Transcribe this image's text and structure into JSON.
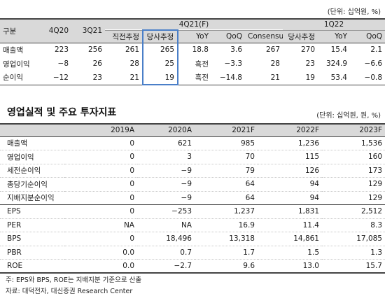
{
  "table1": {
    "unit": "(단위: 십억원, %)",
    "header1": [
      "구분",
      "4Q20",
      "3Q21",
      "4Q21(F)",
      "1Q22"
    ],
    "header2": [
      "직전추정",
      "당사추정",
      "YoY",
      "QoQ",
      "Consensus",
      "당사추정",
      "YoY",
      "QoQ"
    ],
    "rows": [
      [
        "매출액",
        "223",
        "256",
        "261",
        "265",
        "18.8",
        "3.6",
        "267",
        "270",
        "15.4",
        "2.1"
      ],
      [
        "영업이익",
        "−8",
        "26",
        "28",
        "25",
        "흑전",
        "−3.3",
        "28",
        "23",
        "324.9",
        "−6.6"
      ],
      [
        "순이익",
        "−12",
        "23",
        "21",
        "19",
        "흑전",
        "−14.8",
        "21",
        "19",
        "53.4",
        "−0.8"
      ]
    ]
  },
  "section_title": "영업실적 및 주요 투자지표",
  "table2": {
    "unit": "(단위: 십억원, 원, %)",
    "header": [
      "",
      "2019A",
      "2020A",
      "2021F",
      "2022F",
      "2023F"
    ],
    "rows": [
      [
        "매출액",
        "0",
        "621",
        "985",
        "1,236",
        "1,536"
      ],
      [
        "영업이익",
        "0",
        "3",
        "70",
        "115",
        "160"
      ],
      [
        "세전순이익",
        "0",
        "−9",
        "79",
        "126",
        "173"
      ],
      [
        "총당기순이익",
        "0",
        "−9",
        "64",
        "94",
        "129"
      ],
      [
        "지배지분순이익",
        "0",
        "−9",
        "64",
        "94",
        "129"
      ]
    ],
    "rows2": [
      [
        "EPS",
        "0",
        "−253",
        "1,237",
        "1,831",
        "2,512"
      ],
      [
        "PER",
        "NA",
        "NA",
        "16.9",
        "11.4",
        "8.3"
      ],
      [
        "BPS",
        "0",
        "18,496",
        "13,318",
        "14,861",
        "17,085"
      ],
      [
        "PBR",
        "0.0",
        "0.7",
        "1.7",
        "1.5",
        "1.3"
      ],
      [
        "ROE",
        "0.0",
        "−2.7",
        "9.6",
        "13.0",
        "15.7"
      ]
    ]
  },
  "footnote": "주: EPS와 BPS, ROE는 지배지분 기준으로 산출",
  "source": "자료: 대덕전자, 대신증권 Research Center"
}
